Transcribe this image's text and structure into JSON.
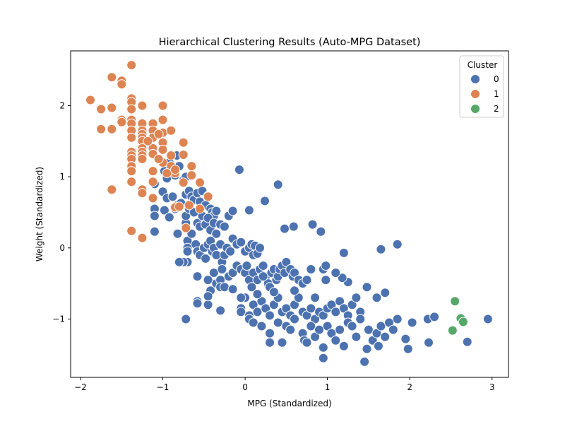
{
  "chart_data": {
    "type": "scatter",
    "title": "Hierarchical Clustering Results (Auto-MPG Dataset)",
    "xlabel": "MPG (Standardized)",
    "ylabel": "Weight (Standardized)",
    "xlim": [
      -2.12,
      3.2
    ],
    "ylim": [
      -1.82,
      2.77
    ],
    "xticks": [
      -2,
      -1,
      0,
      1,
      2,
      3
    ],
    "yticks": [
      -1,
      0,
      1,
      2
    ],
    "tick_labels_x": [
      "−2",
      "−1",
      "0",
      "1",
      "2",
      "3"
    ],
    "tick_labels_y": [
      "−1",
      "0",
      "1",
      "2"
    ],
    "grid": false,
    "legend": {
      "title": "Cluster",
      "position": "top-right",
      "entries": [
        {
          "label": "0",
          "color": "#4c72b0"
        },
        {
          "label": "1",
          "color": "#dd8452"
        },
        {
          "label": "2",
          "color": "#55a868"
        }
      ]
    },
    "series": [
      {
        "name": "0",
        "color": "#4c72b0",
        "points": [
          [
            -0.98,
            1.08
          ],
          [
            -0.95,
            0.98
          ],
          [
            -0.92,
            1.2
          ],
          [
            -0.85,
            1.02
          ],
          [
            -0.83,
            1.3
          ],
          [
            -0.8,
            1.15
          ],
          [
            -0.75,
            0.95
          ],
          [
            -0.72,
            1.0
          ],
          [
            -1.1,
            0.9
          ],
          [
            -1.0,
            0.79
          ],
          [
            -0.95,
            0.7
          ],
          [
            -0.88,
            0.72
          ],
          [
            -0.82,
            0.6
          ],
          [
            -0.78,
            0.63
          ],
          [
            -0.72,
            0.75
          ],
          [
            -0.68,
            0.8
          ],
          [
            -0.65,
            0.72
          ],
          [
            -0.62,
            0.68
          ],
          [
            -0.58,
            0.77
          ],
          [
            -0.55,
            0.65
          ],
          [
            -0.52,
            0.8
          ],
          [
            -0.48,
            0.6
          ],
          [
            -0.45,
            0.73
          ],
          [
            -0.42,
            0.55
          ],
          [
            -0.4,
            0.5
          ],
          [
            -0.38,
            0.45
          ],
          [
            -0.35,
            0.52
          ],
          [
            -1.1,
            0.55
          ],
          [
            -1.1,
            0.45
          ],
          [
            -1.1,
            0.23
          ],
          [
            -0.98,
            0.53
          ],
          [
            -0.92,
            0.43
          ],
          [
            -0.85,
            0.55
          ],
          [
            -0.82,
            0.2
          ],
          [
            -0.72,
            0.35
          ],
          [
            -0.72,
            0.45
          ],
          [
            -0.68,
            0.55
          ],
          [
            -0.62,
            0.5
          ],
          [
            -0.58,
            0.35
          ],
          [
            -0.55,
            0.3
          ],
          [
            -0.52,
            0.45
          ],
          [
            -0.48,
            0.33
          ],
          [
            -0.45,
            0.42
          ],
          [
            -0.42,
            0.25
          ],
          [
            -0.38,
            0.35
          ],
          [
            -0.35,
            0.2
          ],
          [
            -0.3,
            0.33
          ],
          [
            -0.25,
            0.3
          ],
          [
            -0.2,
            0.45
          ],
          [
            -0.15,
            0.52
          ],
          [
            -0.7,
            0.1
          ],
          [
            -0.7,
            0.0
          ],
          [
            -0.7,
            -0.05
          ],
          [
            -0.7,
            -0.2
          ],
          [
            -0.65,
            0.2
          ],
          [
            -0.6,
            0.05
          ],
          [
            -0.58,
            -0.05
          ],
          [
            -0.55,
            -0.1
          ],
          [
            -0.5,
            0.0
          ],
          [
            -0.48,
            -0.15
          ],
          [
            -0.45,
            0.05
          ],
          [
            -0.42,
            0.1
          ],
          [
            -0.4,
            -0.05
          ],
          [
            -0.38,
            0.0
          ],
          [
            -0.35,
            -0.1
          ],
          [
            -0.3,
            0.05
          ],
          [
            -0.28,
            -0.2
          ],
          [
            -0.25,
            -0.1
          ],
          [
            -0.22,
            0.0
          ],
          [
            -0.18,
            -0.05
          ],
          [
            -0.15,
            0.13
          ],
          [
            -0.1,
            0.05
          ],
          [
            -0.05,
            0.08
          ],
          [
            0.0,
            -0.05
          ],
          [
            0.05,
            0.0
          ],
          [
            0.08,
            0.05
          ],
          [
            0.1,
            -0.1
          ],
          [
            0.12,
            0.03
          ],
          [
            0.15,
            -0.08
          ],
          [
            0.18,
            0.0
          ],
          [
            -0.58,
            -0.75
          ],
          [
            -0.58,
            -0.78
          ],
          [
            -0.45,
            -0.8
          ],
          [
            -0.72,
            -1.0
          ],
          [
            -0.58,
            -0.4
          ],
          [
            -0.45,
            -0.45
          ],
          [
            -0.42,
            -0.6
          ],
          [
            -0.38,
            -0.35
          ],
          [
            -0.35,
            -0.5
          ],
          [
            -0.3,
            -0.45
          ],
          [
            -0.3,
            -0.55
          ],
          [
            -0.28,
            -0.3
          ],
          [
            -0.25,
            -0.55
          ],
          [
            -0.2,
            -0.4
          ],
          [
            -0.15,
            -0.35
          ],
          [
            -0.1,
            -0.25
          ],
          [
            -0.05,
            -0.3
          ],
          [
            0.0,
            -0.35
          ],
          [
            0.02,
            -0.25
          ],
          [
            0.05,
            -0.45
          ],
          [
            0.08,
            -0.55
          ],
          [
            0.1,
            -0.35
          ],
          [
            0.15,
            -0.45
          ],
          [
            0.18,
            -0.3
          ],
          [
            0.22,
            -0.25
          ],
          [
            0.25,
            -0.4
          ],
          [
            0.28,
            -0.5
          ],
          [
            0.3,
            -0.55
          ],
          [
            0.32,
            -0.35
          ],
          [
            0.35,
            -0.3
          ],
          [
            0.38,
            -0.45
          ],
          [
            0.4,
            -0.4
          ],
          [
            0.42,
            -0.3
          ],
          [
            0.45,
            -0.25
          ],
          [
            0.48,
            -0.35
          ],
          [
            0.5,
            -0.2
          ],
          [
            0.55,
            -0.3
          ],
          [
            0.58,
            -0.4
          ],
          [
            0.6,
            -0.35
          ],
          [
            0.65,
            -0.45
          ],
          [
            0.7,
            -0.5
          ],
          [
            0.8,
            -0.3
          ],
          [
            0.95,
            -0.3
          ],
          [
            0.98,
            -0.45
          ],
          [
            -0.75,
            -0.2
          ],
          [
            -0.8,
            -0.2
          ],
          [
            -0.45,
            -0.68
          ],
          [
            -0.3,
            -0.88
          ],
          [
            -0.05,
            -0.85
          ],
          [
            -0.05,
            -0.9
          ],
          [
            0.0,
            -0.7
          ],
          [
            0.05,
            -0.95
          ],
          [
            0.1,
            -0.8
          ],
          [
            0.15,
            -0.9
          ],
          [
            0.2,
            -0.75
          ],
          [
            0.25,
            -0.85
          ],
          [
            0.3,
            -0.95
          ],
          [
            0.35,
            -0.8
          ],
          [
            0.4,
            -0.7
          ],
          [
            0.45,
            -0.9
          ],
          [
            0.5,
            -0.85
          ],
          [
            0.55,
            -0.95
          ],
          [
            0.6,
            -0.8
          ],
          [
            0.65,
            -0.7
          ],
          [
            0.7,
            -0.9
          ],
          [
            0.75,
            -0.95
          ],
          [
            0.8,
            -0.85
          ],
          [
            0.85,
            -1.0
          ],
          [
            0.9,
            -0.9
          ],
          [
            0.95,
            -0.95
          ],
          [
            1.0,
            -0.85
          ],
          [
            1.05,
            -0.8
          ],
          [
            1.1,
            -0.9
          ],
          [
            1.15,
            -0.75
          ],
          [
            1.2,
            -0.85
          ],
          [
            1.25,
            -0.95
          ],
          [
            1.3,
            -0.8
          ],
          [
            1.35,
            -0.7
          ],
          [
            1.4,
            -0.9
          ],
          [
            0.05,
            -1.0
          ],
          [
            0.1,
            -1.05
          ],
          [
            0.2,
            -1.1
          ],
          [
            0.3,
            -1.2
          ],
          [
            0.3,
            -1.33
          ],
          [
            0.45,
            -1.33
          ],
          [
            0.4,
            -1.05
          ],
          [
            0.5,
            -1.1
          ],
          [
            0.55,
            -1.15
          ],
          [
            0.6,
            -1.0
          ],
          [
            0.7,
            -1.2
          ],
          [
            0.72,
            -1.3
          ],
          [
            0.75,
            -1.33
          ],
          [
            0.8,
            -1.1
          ],
          [
            0.85,
            -1.25
          ],
          [
            0.9,
            -1.15
          ],
          [
            0.95,
            -1.4
          ],
          [
            0.95,
            -1.55
          ],
          [
            1.0,
            -1.1
          ],
          [
            1.05,
            -1.2
          ],
          [
            1.1,
            -1.3
          ],
          [
            1.15,
            -1.15
          ],
          [
            1.2,
            -1.38
          ],
          [
            1.25,
            -1.05
          ],
          [
            1.3,
            -1.1
          ],
          [
            1.35,
            -1.25
          ],
          [
            1.4,
            -1.0
          ],
          [
            1.45,
            -1.6
          ],
          [
            1.48,
            -1.42
          ],
          [
            1.5,
            -1.15
          ],
          [
            1.55,
            -1.3
          ],
          [
            1.6,
            -1.2
          ],
          [
            1.62,
            -1.38
          ],
          [
            1.65,
            -1.1
          ],
          [
            1.7,
            -1.25
          ],
          [
            1.75,
            -1.05
          ],
          [
            1.8,
            -1.15
          ],
          [
            1.85,
            -1.0
          ],
          [
            1.95,
            -1.28
          ],
          [
            1.98,
            -1.42
          ],
          [
            2.03,
            -1.05
          ],
          [
            2.22,
            -1.0
          ],
          [
            2.23,
            -1.33
          ],
          [
            2.3,
            -0.97
          ],
          [
            2.7,
            -1.32
          ],
          [
            2.95,
            -1.0
          ],
          [
            1.85,
            0.05
          ],
          [
            1.65,
            -0.02
          ],
          [
            1.2,
            -0.07
          ],
          [
            1.6,
            -0.7
          ],
          [
            1.7,
            -0.63
          ],
          [
            1.48,
            -0.55
          ],
          [
            1.25,
            -0.48
          ],
          [
            1.18,
            -0.42
          ],
          [
            1.1,
            -0.35
          ],
          [
            0.98,
            -0.25
          ],
          [
            0.92,
            0.23
          ],
          [
            0.82,
            0.33
          ],
          [
            0.59,
            0.3
          ],
          [
            0.48,
            0.27
          ],
          [
            0.05,
            0.53
          ],
          [
            0.4,
            0.89
          ],
          [
            0.24,
            0.66
          ],
          [
            -0.07,
            1.1
          ],
          [
            0.75,
            -0.45
          ],
          [
            0.85,
            -0.7
          ],
          [
            0.22,
            -0.4
          ],
          [
            -0.15,
            -0.58
          ],
          [
            -0.05,
            -0.7
          ],
          [
            0.15,
            -0.65
          ],
          [
            0.35,
            -0.62
          ],
          [
            0.6,
            -0.6
          ]
        ]
      },
      {
        "name": "1",
        "color": "#dd8452",
        "points": [
          [
            -1.88,
            2.08
          ],
          [
            -1.75,
            1.95
          ],
          [
            -1.75,
            1.67
          ],
          [
            -1.62,
            1.97
          ],
          [
            -1.62,
            1.67
          ],
          [
            -1.62,
            0.82
          ],
          [
            -1.62,
            2.4
          ],
          [
            -1.5,
            2.35
          ],
          [
            -1.5,
            2.3
          ],
          [
            -1.5,
            1.8
          ],
          [
            -1.5,
            1.77
          ],
          [
            -1.38,
            2.57
          ],
          [
            -1.38,
            2.1
          ],
          [
            -1.38,
            2.05
          ],
          [
            -1.38,
            1.95
          ],
          [
            -1.38,
            1.8
          ],
          [
            -1.38,
            1.75
          ],
          [
            -1.38,
            1.65
          ],
          [
            -1.38,
            1.55
          ],
          [
            -1.38,
            1.35
          ],
          [
            -1.38,
            1.3
          ],
          [
            -1.38,
            1.25
          ],
          [
            -1.38,
            1.15
          ],
          [
            -1.38,
            1.08
          ],
          [
            -1.38,
            0.93
          ],
          [
            -1.38,
            0.24
          ],
          [
            -1.25,
            2.0
          ],
          [
            -1.25,
            1.75
          ],
          [
            -1.25,
            1.65
          ],
          [
            -1.25,
            1.6
          ],
          [
            -1.25,
            1.55
          ],
          [
            -1.25,
            1.5
          ],
          [
            -1.25,
            1.4
          ],
          [
            -1.25,
            1.35
          ],
          [
            -1.25,
            1.3
          ],
          [
            -1.25,
            1.25
          ],
          [
            -1.25,
            0.82
          ],
          [
            -1.25,
            0.77
          ],
          [
            -1.25,
            0.14
          ],
          [
            -1.12,
            1.75
          ],
          [
            -1.12,
            1.65
          ],
          [
            -1.12,
            1.55
          ],
          [
            -1.12,
            1.4
          ],
          [
            -1.12,
            1.32
          ],
          [
            -1.12,
            1.08
          ],
          [
            -1.12,
            0.93
          ],
          [
            -1.12,
            0.7
          ],
          [
            -1.0,
            2.0
          ],
          [
            -1.0,
            1.8
          ],
          [
            -1.0,
            1.62
          ],
          [
            -1.0,
            1.48
          ],
          [
            -1.0,
            1.38
          ],
          [
            -1.0,
            1.2
          ],
          [
            -0.9,
            1.65
          ],
          [
            -0.9,
            1.3
          ],
          [
            -0.9,
            1.15
          ],
          [
            -0.85,
            1.05
          ],
          [
            -0.85,
            0.57
          ],
          [
            -0.75,
            1.48
          ],
          [
            -0.75,
            1.31
          ],
          [
            -0.75,
            0.92
          ],
          [
            -0.72,
            0.28
          ],
          [
            -0.68,
            0.6
          ],
          [
            -0.65,
            1.15
          ],
          [
            -0.65,
            1.02
          ],
          [
            -0.55,
            0.55
          ],
          [
            -0.55,
            0.92
          ],
          [
            -0.45,
            0.72
          ],
          [
            -0.8,
            0.58
          ],
          [
            -1.05,
            1.25
          ],
          [
            -1.18,
            1.5
          ],
          [
            -1.05,
            1.6
          ],
          [
            -0.95,
            1.05
          ],
          [
            -0.85,
            1.1
          ]
        ]
      },
      {
        "name": "2",
        "color": "#55a868",
        "points": [
          [
            2.55,
            -0.75
          ],
          [
            2.62,
            -0.99
          ],
          [
            2.52,
            -1.16
          ],
          [
            2.65,
            -1.04
          ]
        ]
      }
    ]
  }
}
